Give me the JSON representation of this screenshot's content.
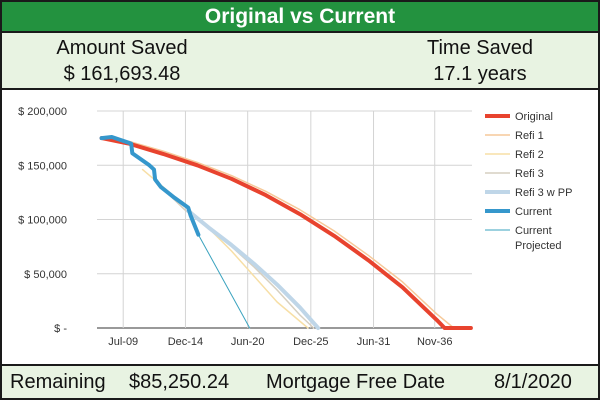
{
  "header": {
    "title": "Original vs Current"
  },
  "summary": {
    "amount_label": "Amount Saved",
    "amount_value": "$ 161,693.48",
    "time_label": "Time Saved",
    "time_value": "17.1 years"
  },
  "footer": {
    "remaining_label": "Remaining",
    "remaining_value": "$85,250.24",
    "free_date_label": "Mortgage Free Date",
    "free_date_value": "8/1/2020"
  },
  "colors": {
    "title_bg": "#23923f",
    "panel_bg": "#e8f3e2",
    "original": "#e8432e",
    "refi1": "#f6c99a",
    "refi2": "#f7dfa6",
    "refi3": "#d6cfc0",
    "refi3pp": "#bfd6e8",
    "current": "#3597cc",
    "current_projected": "#3aa3bf"
  },
  "chart_data": {
    "type": "line",
    "x_unit": "year",
    "xlim": [
      2007.2,
      2040.1
    ],
    "ylim": [
      0,
      200000
    ],
    "y_ticks": [
      0,
      50000,
      100000,
      150000,
      200000
    ],
    "y_tick_labels": [
      "$ -",
      "$ 50,000",
      "$ 100,000",
      "$ 150,000",
      "$ 200,000"
    ],
    "x_ticks": [
      2009.5,
      2014.96,
      2020.42,
      2025.96,
      2031.46,
      2036.83
    ],
    "x_tick_labels": [
      "Jul-09",
      "Dec-14",
      "Jun-20",
      "Dec-25",
      "Jun-31",
      "Nov-36"
    ],
    "grid": true,
    "legend_position": "right",
    "series": [
      {
        "name": "Original",
        "color": "#e8432e",
        "width": 4,
        "x": [
          2007.6,
          2010,
          2013,
          2016,
          2019,
          2022,
          2025,
          2028,
          2031,
          2034,
          2037,
          2037.7,
          2040
        ],
        "y": [
          175000,
          170000,
          160500,
          150000,
          137500,
          122500,
          105000,
          85000,
          62500,
          37500,
          7500,
          0,
          0
        ]
      },
      {
        "name": "Refi 1",
        "color": "#f6c99a",
        "width": 1.5,
        "x": [
          2007.6,
          2010,
          2013,
          2016,
          2019,
          2022,
          2025,
          2028,
          2031,
          2034,
          2037,
          2038.5,
          2040
        ],
        "y": [
          176000,
          172000,
          163000,
          152500,
          140500,
          126000,
          109000,
          89500,
          67000,
          42500,
          13000,
          0,
          0
        ]
      },
      {
        "name": "Refi 2",
        "color": "#f7dfa6",
        "width": 1.5,
        "x": [
          2011.2,
          2013,
          2015,
          2017,
          2019,
          2021,
          2023,
          2025.7
        ],
        "y": [
          146000,
          130000,
          112000,
          92000,
          71000,
          47500,
          24000,
          0
        ]
      },
      {
        "name": "Refi 3",
        "color": "#d6cfc0",
        "width": 1.5,
        "x": [
          2013.4,
          2015,
          2017,
          2019,
          2021,
          2023,
          2025,
          2026.2
        ],
        "y": [
          124000,
          108000,
          92000,
          75000,
          56000,
          35000,
          12000,
          0
        ]
      },
      {
        "name": "Refi 3 w PP",
        "color": "#bfd6e8",
        "width": 4,
        "x": [
          2015.2,
          2017,
          2019,
          2021,
          2023,
          2025,
          2026.6
        ],
        "y": [
          108000,
          92500,
          76500,
          59000,
          40000,
          19000,
          0
        ]
      },
      {
        "name": "Current",
        "color": "#3597cc",
        "width": 4,
        "x": [
          2007.6,
          2008.5,
          2010.2,
          2010.3,
          2011.8,
          2012.2,
          2012.3,
          2012.8,
          2014,
          2015.2,
          2015.4,
          2016.1
        ],
        "y": [
          175000,
          176000,
          170000,
          161000,
          150000,
          146000,
          137000,
          130000,
          120000,
          111000,
          104000,
          86000
        ]
      },
      {
        "name": "Current Projected",
        "color": "#3aa3bf",
        "width": 1,
        "x": [
          2016.1,
          2020.6
        ],
        "y": [
          86000,
          0
        ]
      }
    ]
  }
}
